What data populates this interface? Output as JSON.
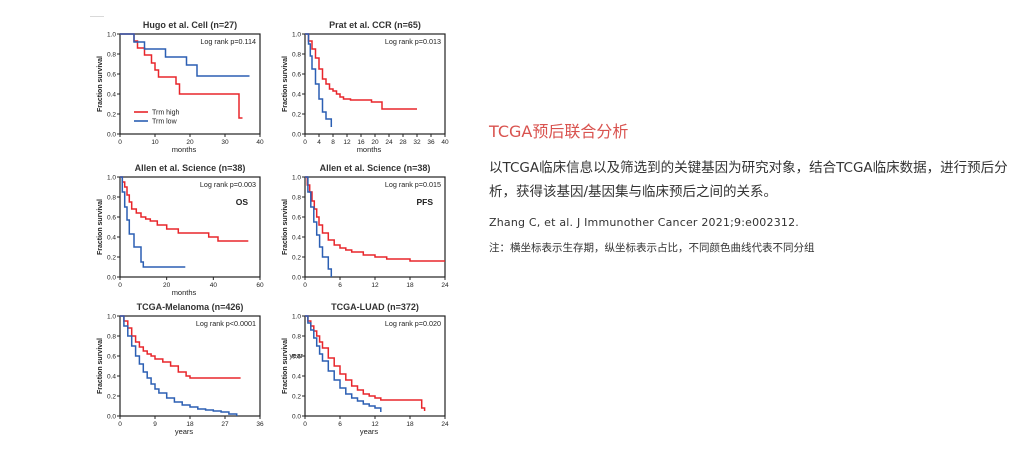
{
  "colors": {
    "high": "#e8262b",
    "low": "#2b5fb3",
    "accent": "#d9534f",
    "axis": "#222222"
  },
  "section": {
    "title": "TCGA预后联合分析",
    "description": "以TCGA临床信息以及筛选到的关键基因为研究对象，结合TCGA临床数据，进行预后分析，获得该基因/基因集与临床预后之间的关系。",
    "citation": "Zhang C, et al. J Immunother Cancer 2021;9:e002312.",
    "note": "注：横坐标表示生存期，纵坐标表示占比，不同颜色曲线代表不同分组"
  },
  "chart_data": [
    {
      "type": "line",
      "title": "Hugo et al. Cell (n=27)",
      "annotation": "Log rank p=0.114",
      "xlabel": "months",
      "ylabel": "Fraction survival",
      "xlim": [
        0,
        40
      ],
      "ylim": [
        0,
        1.0
      ],
      "xticks": [
        "0",
        "10",
        "20",
        "30",
        "40"
      ],
      "yticks": [
        "0.0",
        "0.2",
        "0.4",
        "0.6",
        "0.8",
        "1.0"
      ],
      "legend": {
        "position": "bottom-left",
        "entries": [
          "Trm high",
          "Trm low"
        ]
      },
      "series": [
        {
          "name": "Trm high",
          "color": "high",
          "x": [
            0,
            2,
            4,
            5,
            7,
            9,
            10,
            11,
            15,
            16,
            17,
            20,
            33,
            34,
            35
          ],
          "y": [
            1.0,
            1.0,
            0.93,
            0.86,
            0.79,
            0.71,
            0.64,
            0.57,
            0.57,
            0.5,
            0.4,
            0.4,
            0.4,
            0.16,
            0.16
          ]
        },
        {
          "name": "Trm low",
          "color": "low",
          "x": [
            0,
            3,
            4,
            5,
            7,
            12,
            13,
            14,
            19,
            21,
            22,
            24,
            37
          ],
          "y": [
            1.0,
            1.0,
            0.92,
            0.92,
            0.85,
            0.85,
            0.77,
            0.77,
            0.69,
            0.69,
            0.58,
            0.58,
            0.58
          ]
        }
      ]
    },
    {
      "type": "line",
      "title": "Prat et al. CCR (n=65)",
      "annotation": "Log rank p=0.013",
      "xlabel": "months",
      "ylabel": "Fraction survival",
      "xlim": [
        0,
        40
      ],
      "ylim": [
        0,
        1.0
      ],
      "xticks": [
        "0",
        "4",
        "8",
        "12",
        "16",
        "20",
        "24",
        "28",
        "32",
        "36",
        "40"
      ],
      "yticks": [
        "0.0",
        "0.2",
        "0.4",
        "0.6",
        "0.8",
        "1.0"
      ],
      "series": [
        {
          "name": "",
          "color": "high",
          "x": [
            0,
            1,
            2,
            3,
            4,
            5,
            6,
            7,
            8,
            9,
            10,
            11,
            13,
            15,
            19,
            22,
            24,
            32
          ],
          "y": [
            1.0,
            0.93,
            0.85,
            0.76,
            0.65,
            0.55,
            0.5,
            0.45,
            0.43,
            0.4,
            0.37,
            0.35,
            0.34,
            0.34,
            0.32,
            0.25,
            0.25,
            0.25
          ]
        },
        {
          "name": "",
          "color": "low",
          "x": [
            0,
            1,
            1.5,
            2,
            3,
            4,
            5,
            6,
            7,
            7.5
          ],
          "y": [
            1.0,
            0.9,
            0.78,
            0.65,
            0.5,
            0.35,
            0.22,
            0.15,
            0.15,
            0.07
          ]
        }
      ]
    },
    {
      "type": "line",
      "title": "Allen et al. Science (n=38)",
      "annotation": "Log rank p=0.003",
      "label": "OS",
      "xlabel": "months",
      "ylabel": "Fraction survival",
      "xlim": [
        0,
        60
      ],
      "ylim": [
        0,
        1.0
      ],
      "xticks": [
        "0",
        "20",
        "40",
        "60"
      ],
      "yticks": [
        "0.0",
        "0.2",
        "0.4",
        "0.6",
        "0.8",
        "1.0"
      ],
      "series": [
        {
          "name": "",
          "color": "high",
          "x": [
            0,
            1,
            2,
            3,
            4,
            5,
            7,
            9,
            11,
            13,
            16,
            20,
            25,
            30,
            38,
            42,
            55
          ],
          "y": [
            1.0,
            0.95,
            0.9,
            0.82,
            0.75,
            0.68,
            0.64,
            0.6,
            0.58,
            0.56,
            0.52,
            0.48,
            0.44,
            0.44,
            0.4,
            0.36,
            0.36
          ]
        },
        {
          "name": "",
          "color": "low",
          "x": [
            0,
            1,
            2,
            3,
            4,
            6,
            7,
            9,
            10,
            14,
            28
          ],
          "y": [
            1.0,
            0.85,
            0.7,
            0.57,
            0.43,
            0.3,
            0.3,
            0.15,
            0.1,
            0.1,
            0.1
          ]
        }
      ]
    },
    {
      "type": "line",
      "title": "Allen et al. Science (n=38)",
      "annotation": "Log rank p=0.015",
      "label": "PFS",
      "xlabel": "",
      "ylabel": "Fraction survival",
      "xlim": [
        0,
        24
      ],
      "ylim": [
        0,
        1.0
      ],
      "xticks": [
        "0",
        "6",
        "12",
        "18",
        "24"
      ],
      "yticks": [
        "0.0",
        "0.2",
        "0.4",
        "0.6",
        "0.8",
        "1.0"
      ],
      "series": [
        {
          "name": "",
          "color": "high",
          "x": [
            0,
            0.4,
            0.8,
            1.2,
            1.6,
            2,
            2.4,
            3,
            4,
            5,
            6,
            7,
            8,
            10,
            12,
            14,
            18,
            24
          ],
          "y": [
            1.0,
            0.92,
            0.85,
            0.76,
            0.68,
            0.6,
            0.52,
            0.44,
            0.37,
            0.32,
            0.29,
            0.27,
            0.25,
            0.22,
            0.2,
            0.18,
            0.16,
            0.16
          ]
        },
        {
          "name": "",
          "color": "low",
          "x": [
            0,
            0.5,
            1,
            1.5,
            2,
            2.5,
            3,
            4,
            4.5
          ],
          "y": [
            1.0,
            0.85,
            0.7,
            0.55,
            0.42,
            0.3,
            0.2,
            0.08,
            0.0
          ]
        }
      ]
    },
    {
      "type": "line",
      "title": "TCGA-Melanoma (n=426)",
      "annotation": "Log rank p<0.0001",
      "xlabel": "years",
      "ylabel": "Fraction survival",
      "xlim": [
        0,
        36
      ],
      "ylim": [
        0,
        1.0
      ],
      "xticks": [
        "0",
        "9",
        "18",
        "27",
        "36"
      ],
      "yticks": [
        "0.0",
        "0.2",
        "0.4",
        "0.6",
        "0.8",
        "1.0"
      ],
      "series": [
        {
          "name": "",
          "color": "high",
          "x": [
            0,
            1,
            2,
            3,
            4,
            5,
            6,
            7,
            8,
            9,
            11,
            13,
            15,
            17,
            18,
            31
          ],
          "y": [
            1.0,
            0.95,
            0.88,
            0.8,
            0.74,
            0.69,
            0.65,
            0.62,
            0.6,
            0.57,
            0.54,
            0.5,
            0.44,
            0.4,
            0.38,
            0.38
          ]
        },
        {
          "name": "",
          "color": "low",
          "x": [
            0,
            1,
            2,
            3,
            4,
            5,
            6,
            7,
            8,
            9,
            10,
            12,
            14,
            16,
            18,
            20,
            22,
            24,
            26,
            28,
            30
          ],
          "y": [
            1.0,
            0.9,
            0.8,
            0.7,
            0.6,
            0.52,
            0.44,
            0.38,
            0.32,
            0.27,
            0.23,
            0.18,
            0.14,
            0.11,
            0.09,
            0.07,
            0.06,
            0.05,
            0.04,
            0.02,
            0.0
          ]
        }
      ]
    },
    {
      "type": "line",
      "title": "TCGA-LUAD (n=372)",
      "annotation": "Log rank p=0.020",
      "xlabel": "years",
      "ylabel": "Fraction survival",
      "side_label": "year",
      "xlim": [
        0,
        24
      ],
      "ylim": [
        0,
        1.0
      ],
      "xticks": [
        "0",
        "6",
        "12",
        "18",
        "24"
      ],
      "yticks": [
        "0.0",
        "0.2",
        "0.4",
        "0.6",
        "0.8",
        "1.0"
      ],
      "series": [
        {
          "name": "",
          "color": "high",
          "x": [
            0,
            0.5,
            1,
            1.5,
            2,
            2.5,
            3,
            4,
            5,
            6,
            7,
            8,
            9,
            10,
            11,
            12,
            13,
            15,
            17,
            19,
            20,
            20.5
          ],
          "y": [
            1.0,
            0.95,
            0.9,
            0.85,
            0.8,
            0.74,
            0.68,
            0.58,
            0.5,
            0.42,
            0.36,
            0.3,
            0.26,
            0.22,
            0.2,
            0.18,
            0.16,
            0.16,
            0.16,
            0.16,
            0.08,
            0.05
          ]
        },
        {
          "name": "",
          "color": "low",
          "x": [
            0,
            0.5,
            1,
            1.5,
            2,
            2.5,
            3,
            4,
            5,
            6,
            7,
            8,
            9,
            10,
            11,
            12,
            13
          ],
          "y": [
            1.0,
            0.93,
            0.86,
            0.78,
            0.7,
            0.62,
            0.55,
            0.45,
            0.36,
            0.28,
            0.22,
            0.18,
            0.15,
            0.12,
            0.1,
            0.08,
            0.04
          ]
        }
      ]
    }
  ]
}
